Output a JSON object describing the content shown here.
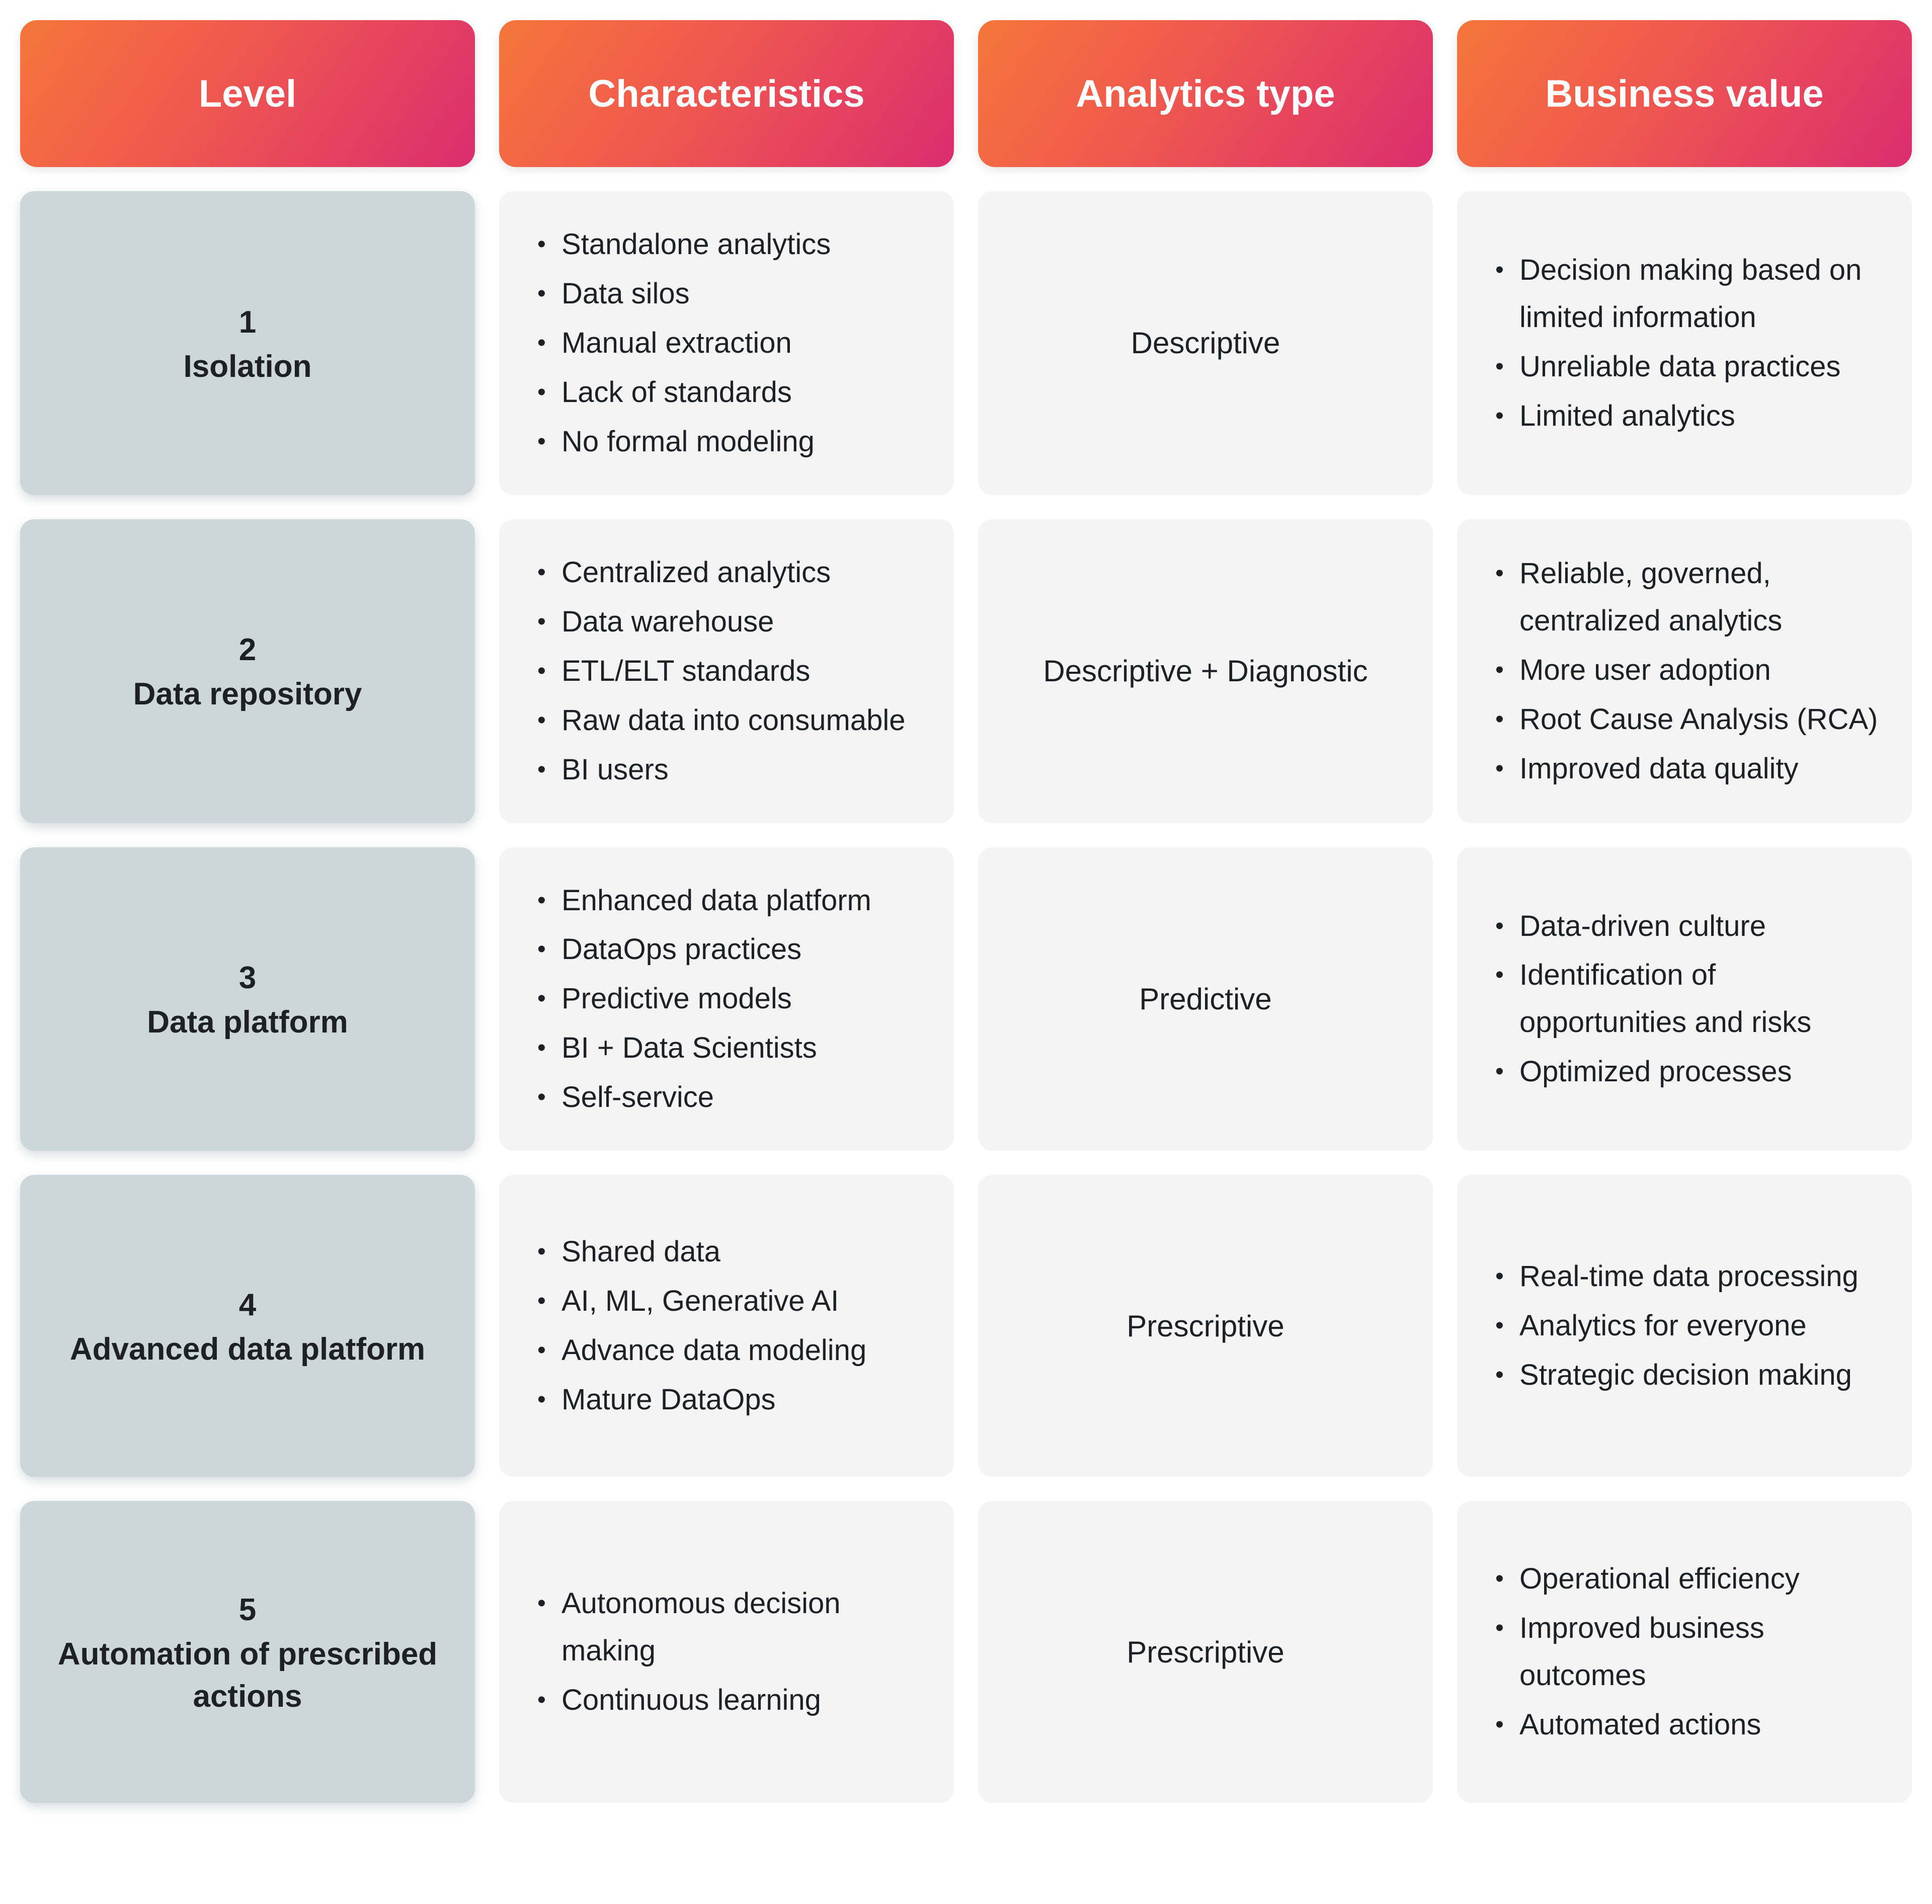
{
  "table": {
    "headers": [
      {
        "label": "Level"
      },
      {
        "label": "Characteristics"
      },
      {
        "label": "Analytics type"
      },
      {
        "label": "Business value"
      }
    ],
    "rows": [
      {
        "level_number": "1",
        "level_name": "Isolation",
        "characteristics": [
          "Standalone analytics",
          "Data silos",
          "Manual extraction",
          "Lack of standards",
          "No formal modeling"
        ],
        "analytics_type": "Descriptive",
        "business_value": [
          "Decision making based on limited information",
          "Unreliable data practices",
          "Limited analytics"
        ]
      },
      {
        "level_number": "2",
        "level_name": "Data repository",
        "characteristics": [
          "Centralized analytics",
          "Data warehouse",
          "ETL/ELT standards",
          "Raw data into consumable",
          "BI users"
        ],
        "analytics_type": "Descriptive + Diagnostic",
        "business_value": [
          "Reliable, governed, centralized analytics",
          "More user adoption",
          "Root Cause Analysis (RCA)",
          "Improved data quality"
        ]
      },
      {
        "level_number": "3",
        "level_name": "Data platform",
        "characteristics": [
          "Enhanced data platform",
          "DataOps practices",
          "Predictive models",
          "BI + Data Scientists",
          "Self-service"
        ],
        "analytics_type": "Predictive",
        "business_value": [
          "Data-driven culture",
          "Identification of opportunities and risks",
          "Optimized processes"
        ]
      },
      {
        "level_number": "4",
        "level_name": "Advanced data platform",
        "characteristics": [
          "Shared data",
          "AI, ML, Generative AI",
          "Advance data modeling",
          "Mature DataOps"
        ],
        "analytics_type": "Prescriptive",
        "business_value": [
          "Real-time data processing",
          "Analytics for everyone",
          "Strategic decision making"
        ]
      },
      {
        "level_number": "5",
        "level_name": "Automation of prescribed actions",
        "characteristics": [
          "Autonomous decision making",
          "Continuous learning"
        ],
        "analytics_type": "Prescriptive",
        "business_value": [
          "Operational efficiency",
          "Improved business outcomes",
          "Automated actions"
        ]
      }
    ]
  },
  "colors": {
    "header_gradient_start": "#f5763a",
    "header_gradient_end": "#da2d6f",
    "level_cell_background": "#ccd6db",
    "cell_background": "#f4f4f5",
    "text": "#1d2025",
    "header_text": "#ffffff"
  }
}
